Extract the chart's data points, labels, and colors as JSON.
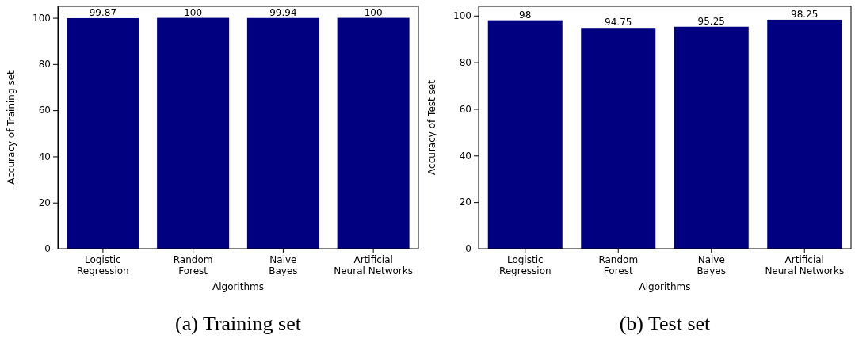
{
  "chart_data": [
    {
      "type": "bar",
      "title": "(a)  Training set",
      "xlabel": "Algorithms",
      "ylabel": "Accuracy of Training set",
      "categories": [
        "Logistic\nRegression",
        "Random\nForest",
        "Naive\nBayes",
        "Artificial\nNeural Networks"
      ],
      "values": [
        99.87,
        100,
        99.94,
        100
      ],
      "color": "#000080",
      "ylim": [
        0,
        105
      ],
      "yticks": [
        0,
        20,
        40,
        60,
        80,
        100
      ],
      "data_labels": true,
      "grid": false
    },
    {
      "type": "bar",
      "title": "(b) Test set",
      "xlabel": "Algorithms",
      "ylabel": "Accuracy of Test set",
      "categories": [
        "Logistic\nRegression",
        "Random\nForest",
        "Naive\nBayes",
        "Artificial\nNeural Networks"
      ],
      "values": [
        98,
        94.75,
        95.25,
        98.25
      ],
      "color": "#000080",
      "ylim": [
        0,
        104
      ],
      "yticks": [
        0,
        20,
        40,
        60,
        80,
        100
      ],
      "data_labels": true,
      "grid": false
    }
  ]
}
